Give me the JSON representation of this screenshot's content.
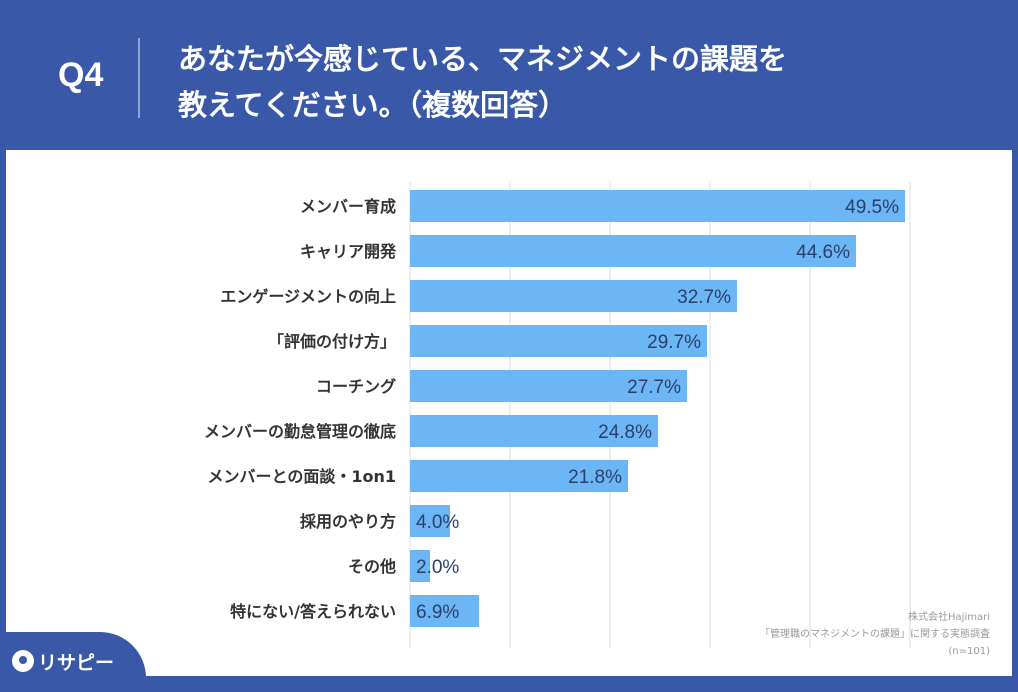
{
  "header": {
    "question_number": "Q4",
    "title": "あなたが今感じている、マネジメントの課題を\n教えてください。（複数回答）"
  },
  "chart_data": {
    "type": "bar",
    "orientation": "horizontal",
    "categories": [
      "メンバー育成",
      "キャリア開発",
      "エンゲージメントの向上",
      "「評価の付け方」",
      "コーチング",
      "メンバーの勤怠管理の徹底",
      "メンバーとの面談・1on1",
      "採用のやり方",
      "その他",
      "特にない/答えられない"
    ],
    "values": [
      49.5,
      44.6,
      32.7,
      29.7,
      27.7,
      24.8,
      21.8,
      4.0,
      2.0,
      6.9
    ],
    "value_labels": [
      "49.5%",
      "44.6%",
      "32.7%",
      "29.7%",
      "27.7%",
      "24.8%",
      "21.8%",
      "4.0%",
      "2.0%",
      "6.9%"
    ],
    "xlim": [
      0,
      50
    ],
    "grid": true,
    "bar_color": "#6cb6f5"
  },
  "source": {
    "company": "株式会社Hajimari",
    "survey": "「管理職のマネジメントの課題」に関する実態調査",
    "sample": "(n=101)"
  },
  "brand": {
    "logo_text": "リサピー"
  }
}
